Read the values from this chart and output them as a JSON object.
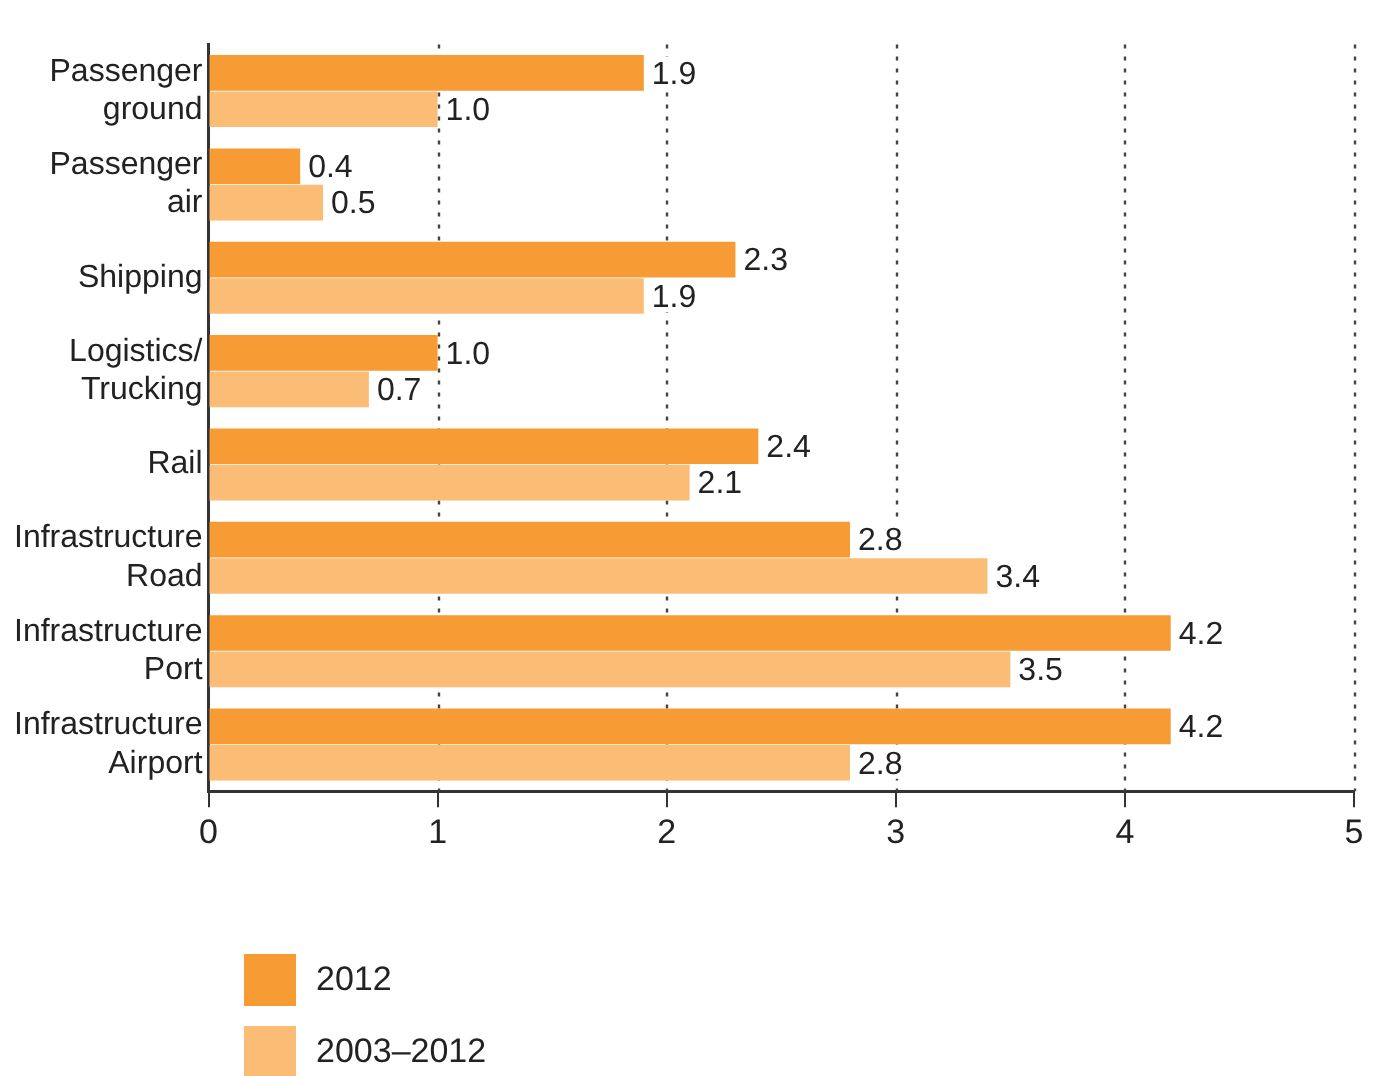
{
  "chart_data": {
    "type": "bar",
    "orientation": "horizontal",
    "categories": [
      "Passenger ground",
      "Passenger air",
      "Shipping",
      "Logistics/Trucking",
      "Rail",
      "Infrastructure Road",
      "Infrastructure Port",
      "Infrastructure Airport"
    ],
    "series": [
      {
        "name": "2012",
        "color": "#f79b34",
        "values": [
          1.9,
          0.4,
          2.3,
          1.0,
          2.4,
          2.8,
          4.2,
          4.2
        ],
        "value_labels": [
          "1.9",
          "0.4",
          "2.3",
          "1.0",
          "2.4",
          "2.8",
          "4.2",
          "4.2"
        ]
      },
      {
        "name": "2003–2012",
        "color": "#fbbc76",
        "values": [
          1.0,
          0.5,
          1.9,
          0.7,
          2.1,
          3.4,
          3.5,
          2.8
        ],
        "value_labels": [
          "1.0",
          "0.5",
          "1.9",
          "0.7",
          "2.1",
          "3.4",
          "3.5",
          "2.8"
        ]
      }
    ],
    "xlim": [
      0,
      5
    ],
    "xticks": [
      0,
      1,
      2,
      3,
      4,
      5
    ],
    "grid": "x",
    "legend": "bottom left"
  }
}
